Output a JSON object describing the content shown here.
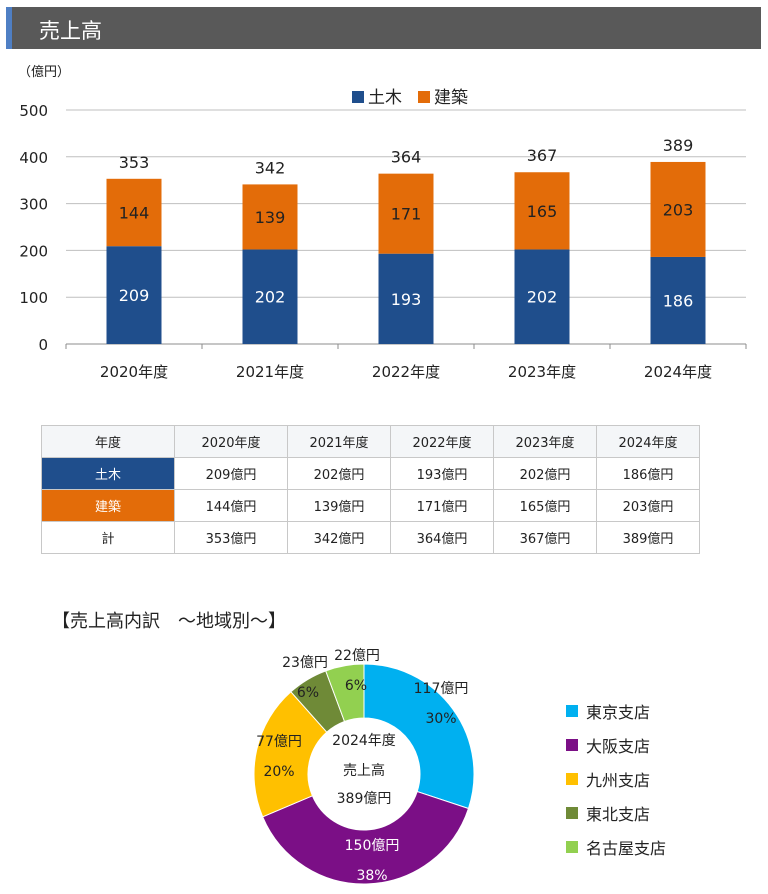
{
  "header": {
    "title": "売上高"
  },
  "bar_chart": {
    "unit_label": "（億円）"
  },
  "table": {
    "header_label": "年度",
    "years": [
      "2020年度",
      "2021年度",
      "2022年度",
      "2023年度",
      "2024年度"
    ],
    "rows": [
      {
        "label": "土木",
        "values": [
          "209億円",
          "202億円",
          "193億円",
          "202億円",
          "186億円"
        ]
      },
      {
        "label": "建築",
        "values": [
          "144億円",
          "139億円",
          "171億円",
          "165億円",
          "203億円"
        ]
      },
      {
        "label": "計",
        "values": [
          "353億円",
          "342億円",
          "364億円",
          "367億円",
          "389億円"
        ]
      }
    ]
  },
  "donut_title": "【売上高内訳　～地域別～】",
  "chart_data": [
    {
      "type": "bar",
      "stacked": true,
      "categories": [
        "2020年度",
        "2021年度",
        "2022年度",
        "2023年度",
        "2024年度"
      ],
      "series": [
        {
          "name": "土木",
          "values": [
            209,
            202,
            193,
            202,
            186
          ],
          "color": "#1f4e8c"
        },
        {
          "name": "建築",
          "values": [
            144,
            139,
            171,
            165,
            203
          ],
          "color": "#e36c09"
        }
      ],
      "totals": [
        353,
        342,
        364,
        367,
        389
      ],
      "ylabel": "（億円）",
      "ylim": [
        0,
        500
      ],
      "yticks": [
        0,
        100,
        200,
        300,
        400,
        500
      ],
      "grid": true,
      "legend": "top-center"
    },
    {
      "type": "pie",
      "donut": true,
      "center_text": [
        "2024年度",
        "売上高",
        "389億円"
      ],
      "slices": [
        {
          "name": "東京支店",
          "value": 117,
          "label": "117億円",
          "pct": "30%",
          "color": "#00b0f0"
        },
        {
          "name": "大阪支店",
          "value": 150,
          "label": "150億円",
          "pct": "38%",
          "color": "#7b0f86"
        },
        {
          "name": "九州支店",
          "value": 77,
          "label": "77億円",
          "pct": "20%",
          "color": "#ffc000"
        },
        {
          "name": "東北支店",
          "value": 23,
          "label": "23億円",
          "pct": "6%",
          "color": "#6f8a37"
        },
        {
          "name": "名古屋支店",
          "value": 22,
          "label": "22億円",
          "pct": "6%",
          "color": "#92d050"
        }
      ],
      "legend": "right"
    }
  ]
}
